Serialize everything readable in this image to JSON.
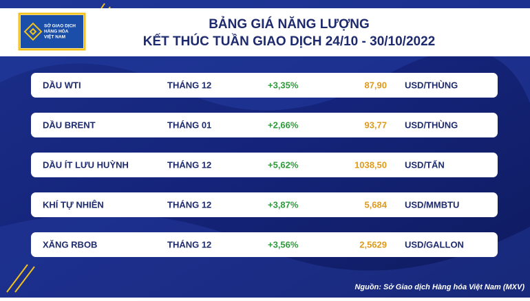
{
  "logo": {
    "lines": [
      "SỞ GIAO DỊCH",
      "HÀNG HÓA",
      "VIỆT NAM"
    ]
  },
  "header": {
    "title": [
      "BẢNG GIÁ NĂNG LƯỢNG",
      "KẾT THÚC TUẦN GIAO DỊCH 24/10 - 30/10/2022"
    ]
  },
  "table": {
    "rows": [
      [
        "DẦU WTI",
        "THÁNG 12",
        "+3,35%",
        "87,90",
        "USD/THÙNG"
      ],
      [
        "DẦU BRENT",
        "THÁNG 01",
        "+2,66%",
        "93,77",
        "USD/THÙNG"
      ],
      [
        "DẦU ÍT LƯU HUỲNH",
        "THÁNG 12",
        "+5,62%",
        "1038,50",
        "USD/TẤN"
      ],
      [
        "KHÍ TỰ NHIÊN",
        "THÁNG 12",
        "+3,87%",
        "5,684",
        "USD/MMBTU"
      ],
      [
        "XĂNG RBOB",
        "THÁNG 12",
        "+3,56%",
        "2,5629",
        "USD/GALLON"
      ]
    ]
  },
  "source": "Nguồn: Sở Giao dịch Hàng hóa Việt Nam (MXV)"
}
